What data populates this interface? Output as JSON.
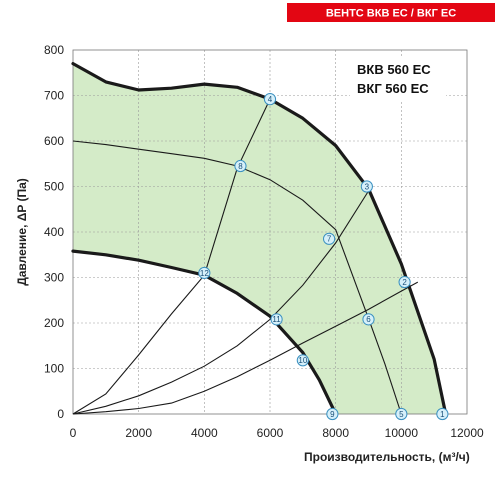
{
  "badge": "ВЕНТС ВКВ ЕС / ВКГ ЕС",
  "models": [
    "ВКВ 560 ЕС",
    "ВКГ 560 ЕС"
  ],
  "chart_data": {
    "type": "line",
    "xlabel": "Производительность, (м³/ч)",
    "ylabel": "Давление, ΔP (Па)",
    "xlim": [
      0,
      12000
    ],
    "ylim": [
      0,
      800
    ],
    "x_ticks": [
      "0",
      "2000",
      "4000",
      "6000",
      "8000",
      "10000",
      "12000"
    ],
    "y_ticks": [
      "0",
      "100",
      "200",
      "300",
      "400",
      "500",
      "600",
      "700",
      "800"
    ],
    "grid": true,
    "shaded_area_color": "#d4ebc8",
    "marker_color": "#3a90c0",
    "series": [
      {
        "style": "max_speed",
        "points": [
          [
            0,
            770
          ],
          [
            1000,
            730
          ],
          [
            2000,
            712
          ],
          [
            3000,
            716
          ],
          [
            4000,
            725
          ],
          [
            5000,
            718
          ],
          [
            6000,
            692
          ],
          [
            7000,
            650
          ],
          [
            8000,
            590
          ],
          [
            9000,
            495
          ],
          [
            10000,
            330
          ],
          [
            11000,
            120
          ],
          [
            11350,
            0
          ]
        ]
      },
      {
        "style": "min_speed",
        "points": [
          [
            0,
            358
          ],
          [
            1000,
            350
          ],
          [
            2000,
            338
          ],
          [
            3000,
            322
          ],
          [
            4000,
            305
          ],
          [
            5000,
            265
          ],
          [
            6000,
            215
          ],
          [
            7000,
            135
          ],
          [
            7500,
            75
          ],
          [
            8000,
            0
          ]
        ]
      },
      {
        "style": "intermediate_speed",
        "points": [
          [
            0,
            600
          ],
          [
            1000,
            592
          ],
          [
            2000,
            582
          ],
          [
            3000,
            572
          ],
          [
            4000,
            562
          ],
          [
            5000,
            545
          ],
          [
            6000,
            515
          ],
          [
            7000,
            470
          ],
          [
            8000,
            405
          ],
          [
            9000,
            210
          ],
          [
            9500,
            110
          ],
          [
            10000,
            0
          ]
        ]
      },
      {
        "style": "system_curve",
        "points": [
          [
            0,
            0
          ],
          [
            1000,
            5
          ],
          [
            2000,
            12
          ],
          [
            3000,
            24
          ],
          [
            4000,
            50
          ],
          [
            5000,
            82
          ],
          [
            6000,
            118
          ],
          [
            7000,
            156
          ],
          [
            8000,
            193
          ],
          [
            9000,
            230
          ],
          [
            10000,
            270
          ],
          [
            10500,
            290
          ]
        ]
      },
      {
        "style": "system_curve",
        "points": [
          [
            0,
            0
          ],
          [
            1000,
            17
          ],
          [
            2000,
            40
          ],
          [
            3000,
            70
          ],
          [
            4000,
            105
          ],
          [
            5000,
            150
          ],
          [
            6000,
            208
          ],
          [
            7000,
            283
          ],
          [
            8000,
            376
          ],
          [
            9000,
            490
          ]
        ]
      },
      {
        "style": "system_curve",
        "points": [
          [
            0,
            0
          ],
          [
            1000,
            44
          ],
          [
            2000,
            130
          ],
          [
            3000,
            220
          ],
          [
            4000,
            305
          ],
          [
            5000,
            540
          ],
          [
            6000,
            692
          ]
        ]
      }
    ],
    "markers": [
      {
        "label": "1",
        "x": 11250,
        "y": 0
      },
      {
        "label": "2",
        "x": 10100,
        "y": 290
      },
      {
        "label": "3",
        "x": 8950,
        "y": 500
      },
      {
        "label": "4",
        "x": 6000,
        "y": 692
      },
      {
        "label": "5",
        "x": 10000,
        "y": 0
      },
      {
        "label": "6",
        "x": 9000,
        "y": 208
      },
      {
        "label": "7",
        "x": 7800,
        "y": 385
      },
      {
        "label": "8",
        "x": 5100,
        "y": 545
      },
      {
        "label": "9",
        "x": 7900,
        "y": 0
      },
      {
        "label": "10",
        "x": 7000,
        "y": 118
      },
      {
        "label": "11",
        "x": 6200,
        "y": 208
      },
      {
        "label": "12",
        "x": 4000,
        "y": 310
      }
    ]
  }
}
